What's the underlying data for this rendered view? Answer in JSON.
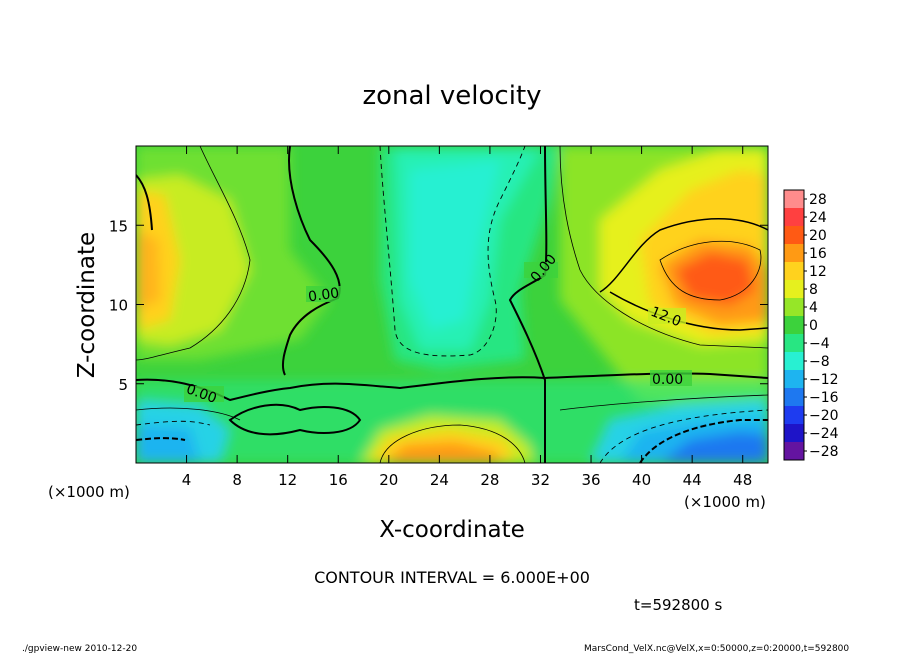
{
  "chart_data": {
    "type": "heatmap",
    "title": "zonal velocity",
    "xlabel": "X-coordinate",
    "ylabel": "Z-coordinate",
    "x_unit": "(×1000 m)",
    "y_unit": "(×1000 m)",
    "xlim": [
      0,
      50
    ],
    "ylim": [
      0,
      20
    ],
    "x_ticks": [
      "4",
      "8",
      "12",
      "16",
      "20",
      "24",
      "28",
      "32",
      "36",
      "40",
      "44",
      "48"
    ],
    "y_ticks": [
      "5",
      "10",
      "15"
    ],
    "colorbar": {
      "labels": [
        "28",
        "24",
        "20",
        "16",
        "12",
        "8",
        "4",
        "0",
        "−4",
        "−8",
        "−12",
        "−16",
        "−20",
        "−24",
        "−28"
      ],
      "colors": [
        "#ff8c8c",
        "#ff4040",
        "#ff5a14",
        "#ff9a14",
        "#ffd21e",
        "#e6f01e",
        "#96e628",
        "#3cd23c",
        "#28e682",
        "#28f0d2",
        "#1eb4f0",
        "#1e78f0",
        "#1e3cf0",
        "#1e14c8",
        "#6414a0"
      ]
    },
    "contour_labels": [
      "0.00",
      "0.00",
      "0.00",
      "0.00",
      "12.0"
    ],
    "contour_interval": "CONTOUR INTERVAL = 6.000E+00",
    "time": "t=592800 s",
    "footer_left": "./gpview-new  2010-12-20",
    "footer_right": "MarsCond_VelX.nc@VelX,x=0:50000,z=0:20000,t=592800",
    "regions": [
      {
        "label": "broad positive band",
        "value": 4
      },
      {
        "label": "upper-left jet",
        "value": 14
      },
      {
        "label": "upper-right jet core",
        "value": 22
      },
      {
        "label": "central weak negative",
        "value": -7
      },
      {
        "label": "lower-center surface maximum",
        "value": 16
      },
      {
        "label": "lower-right surface minimum",
        "value": -14
      }
    ]
  }
}
